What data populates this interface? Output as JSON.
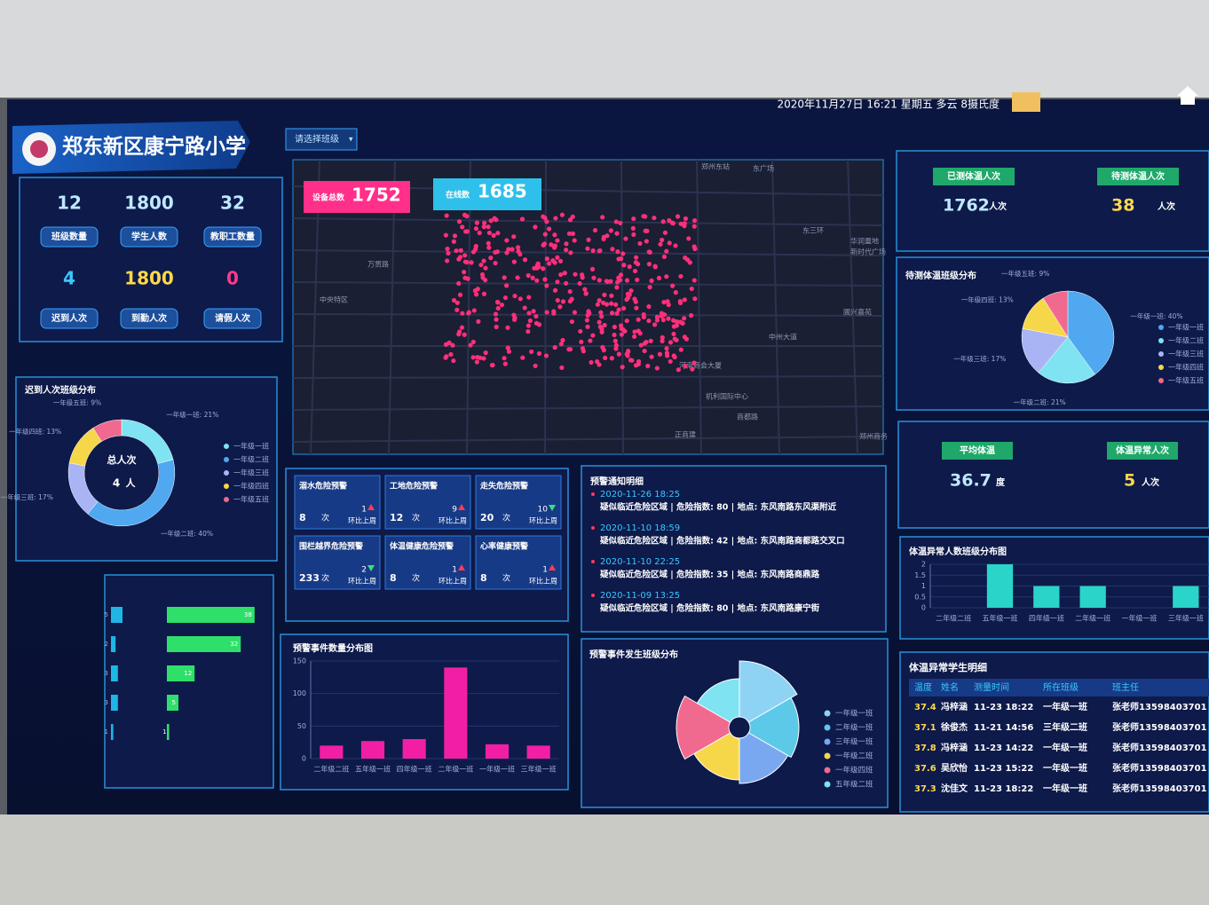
{
  "header": {
    "school": "郑东新区康宁路小学",
    "class_select": "请选择班级",
    "datetime": "2020年11月27日 16:21 星期五 多云 8摄氏度"
  },
  "stats": [
    {
      "value": 12,
      "label": "班级数量"
    },
    {
      "value": 1800,
      "label": "学生人数"
    },
    {
      "value": 32,
      "label": "教职工数量"
    },
    {
      "value": 4,
      "label": "迟到人次"
    },
    {
      "value": 1800,
      "label": "到勤人次"
    },
    {
      "value": 0,
      "label": "请假人次"
    }
  ],
  "map": {
    "total_label": "设备总数",
    "total": 1752,
    "online_label": "在线数",
    "online": 1685,
    "places": [
      "郑州东站",
      "东广场",
      "中央特区",
      "万贯路",
      "华润置地",
      "新时代广场",
      "河南商会大厦",
      "机利国际中心",
      "正商建",
      "郑州商务",
      "圃兴嘉苑",
      "东三环",
      "中州大道",
      "商都路"
    ]
  },
  "temperature": {
    "measured_label": "已测体温人次",
    "measured": 1762,
    "pending_label": "待测体温人次",
    "pending": 38,
    "unit": "人次",
    "avg_label": "平均体温",
    "avg": 36.7,
    "avg_unit": "度",
    "abnormal_label": "体温异常人次",
    "abnormal": 5
  },
  "warnings": {
    "count_unit": "次",
    "compare": "环比上周",
    "items": [
      {
        "name": "溺水危险预警",
        "count": 8,
        "change": 1,
        "trend": "up"
      },
      {
        "name": "工地危险预警",
        "count": 12,
        "change": 9,
        "trend": "up"
      },
      {
        "name": "走失危险预警",
        "count": 20,
        "change": 10,
        "trend": "down"
      },
      {
        "name": "围栏越界危险预警",
        "count": 233,
        "change": 2,
        "trend": "down"
      },
      {
        "name": "体温健康危险预警",
        "count": 8,
        "change": 1,
        "trend": "up"
      },
      {
        "name": "心率健康预警",
        "count": 8,
        "change": 1,
        "trend": "up"
      }
    ]
  },
  "notices": {
    "title": "预警通知明细",
    "items": [
      {
        "time": "2020-11-26 18:25",
        "text": "疑似临近危险区域 | 危险指数: 80 | 地点: 东风南路东风渠附近"
      },
      {
        "time": "2020-11-10 18:59",
        "text": "疑似临近危险区域 | 危险指数: 42 | 地点: 东风南路商都路交叉口"
      },
      {
        "time": "2020-11-10 22:25",
        "text": "疑似临近危险区域 | 危险指数: 35 | 地点: 东风南路商鼎路"
      },
      {
        "time": "2020-11-09 13:25",
        "text": "疑似临近危险区域 | 危险指数: 80 | 地点: 东风南路康宁街"
      }
    ]
  },
  "abnormal_table": {
    "title": "体温异常学生明细",
    "headers": [
      "温度",
      "姓名",
      "测量时间",
      "所在班级",
      "班主任"
    ],
    "rows": [
      [
        37.4,
        "冯梓涵",
        "11-23 18:22",
        "一年级一班",
        "张老师13598403701"
      ],
      [
        37.1,
        "徐俊杰",
        "11-21 14:56",
        "三年级二班",
        "张老师13598403701"
      ],
      [
        37.8,
        "冯梓涵",
        "11-23 14:22",
        "一年级一班",
        "张老师13598403701"
      ],
      [
        37.6,
        "吴欣怡",
        "11-23 15:22",
        "一年级一班",
        "张老师13598403701"
      ],
      [
        37.3,
        "沈佳文",
        "11-23 18:22",
        "一年级一班",
        "张老师13598403701"
      ]
    ]
  },
  "chart_data": [
    {
      "type": "donut",
      "title": "迟到人次班级分布",
      "center_label": "总人次",
      "center_value": 4,
      "center_unit": "人",
      "categories": [
        "一年级一班",
        "一年级二班",
        "一年级三班",
        "一年级四班",
        "一年级五班"
      ],
      "values": [
        21,
        40,
        17,
        13,
        9
      ],
      "value_labels": [
        "一年级一班: 21%",
        "一年级二班: 40%",
        "一年级三班: 17%",
        "一年级四班: 13%",
        "一年级五班: 9%"
      ],
      "colors": [
        "#7fe3f2",
        "#4fa8f0",
        "#a9b4f5",
        "#f7d74a",
        "#f06a8f"
      ]
    },
    {
      "type": "hbar",
      "categories": [
        null,
        null,
        null,
        null,
        null
      ],
      "xlim": [
        0,
        40
      ],
      "series": [
        {
          "color": "#1fb6e6",
          "values": [
            5,
            2,
            3,
            3,
            1
          ]
        },
        {
          "color": "#2ee06a",
          "values": [
            38,
            32,
            12,
            5,
            1
          ]
        }
      ]
    },
    {
      "type": "pie",
      "title": "待测体温班级分布",
      "categories": [
        "一年级一班",
        "一年级二班",
        "一年级三班",
        "一年级四班",
        "一年级五班"
      ],
      "values": [
        40,
        21,
        17,
        13,
        9
      ],
      "value_labels": [
        "一年级一班: 40%",
        "一年级二班: 21%",
        "一年级三班: 17%",
        "一年级四班: 13%",
        "一年级五班: 9%"
      ],
      "colors": [
        "#4fa8f0",
        "#7fe3f2",
        "#a9b4f5",
        "#f7d74a",
        "#f06a8f"
      ]
    },
    {
      "type": "bar",
      "title": "体温异常人数班级分布图",
      "categories": [
        "二年级二班",
        "五年级一班",
        "四年级一班",
        "二年级一班",
        "一年级一班",
        "三年级一班"
      ],
      "values": [
        0,
        2,
        1,
        1,
        0,
        1
      ],
      "color": "#2ad4c8",
      "ylim": [
        0,
        2
      ],
      "yticks": [
        0,
        0.5,
        1,
        1.5,
        2
      ],
      "grid": true
    },
    {
      "type": "bar",
      "title": "预警事件数量分布图",
      "categories": [
        "二年级二班",
        "五年级一班",
        "四年级一班",
        "二年级一班",
        "一年级一班",
        "三年级一班"
      ],
      "values": [
        20,
        27,
        30,
        140,
        22,
        20
      ],
      "color": "#f21fa5",
      "ylim": [
        0,
        150
      ],
      "yticks": [
        0,
        50,
        100,
        150
      ],
      "grid": true
    },
    {
      "type": "rose",
      "title": "预警事件发生班级分布",
      "categories": [
        "一年级一班",
        "二年级一班",
        "三年级一班",
        "一年级二班",
        "一年级四班",
        "五年级二班"
      ],
      "values": [
        30,
        26,
        24,
        22,
        28,
        20
      ],
      "colors": [
        "#8fd3f4",
        "#5cc9e8",
        "#7aa8f0",
        "#f7d74a",
        "#f06a8f",
        "#7fe3f2"
      ]
    }
  ]
}
